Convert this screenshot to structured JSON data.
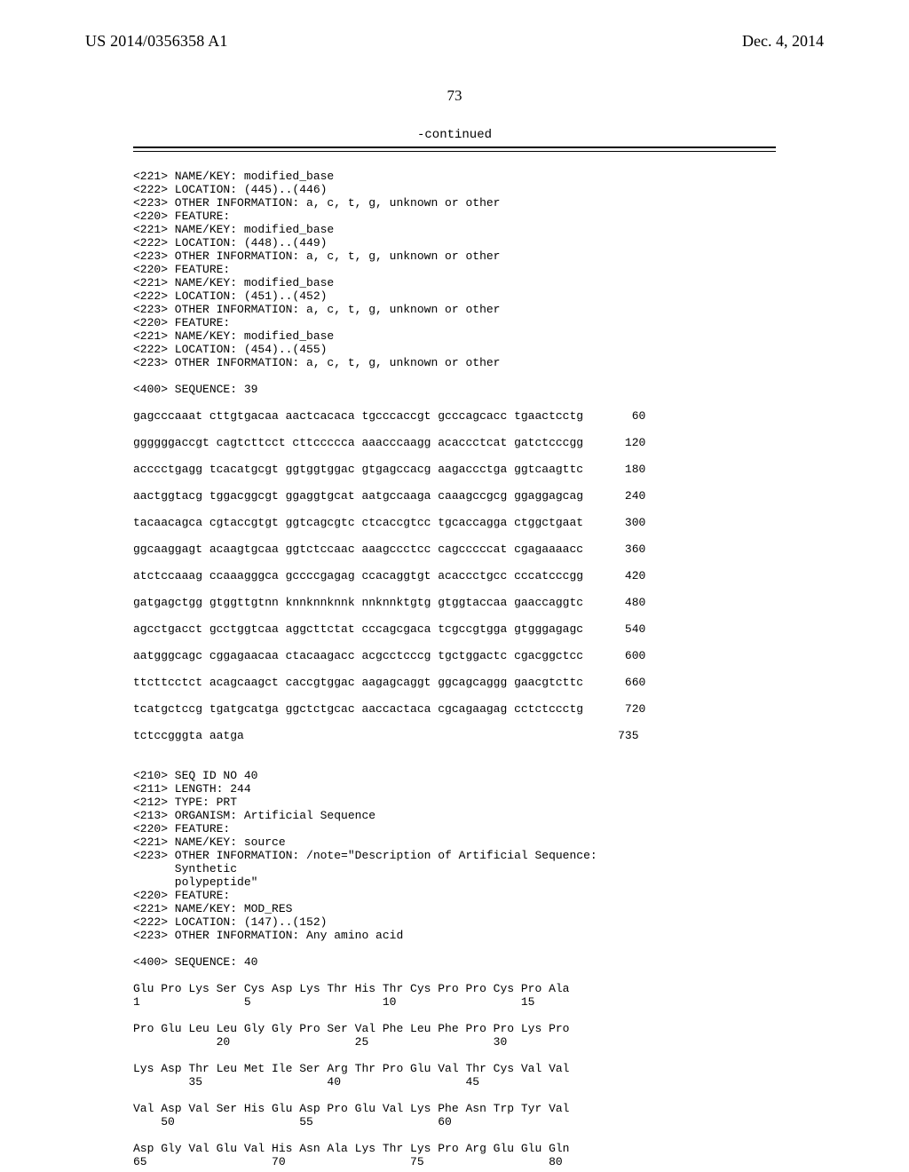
{
  "header": {
    "pub_number": "US 2014/0356358 A1",
    "pub_date": "Dec. 4, 2014",
    "page_number": "73",
    "continued": "-continued"
  },
  "body_text": "<221> NAME/KEY: modified_base\n<222> LOCATION: (445)..(446)\n<223> OTHER INFORMATION: a, c, t, g, unknown or other\n<220> FEATURE:\n<221> NAME/KEY: modified_base\n<222> LOCATION: (448)..(449)\n<223> OTHER INFORMATION: a, c, t, g, unknown or other\n<220> FEATURE:\n<221> NAME/KEY: modified_base\n<222> LOCATION: (451)..(452)\n<223> OTHER INFORMATION: a, c, t, g, unknown or other\n<220> FEATURE:\n<221> NAME/KEY: modified_base\n<222> LOCATION: (454)..(455)\n<223> OTHER INFORMATION: a, c, t, g, unknown or other\n\n<400> SEQUENCE: 39\n\ngagcccaaat cttgtgacaa aactcacaca tgcccaccgt gcccagcacc tgaactcctg       60\n\nggggggaccgt cagtcttcct cttccccca aaacccaagg acaccctcat gatctcccgg      120\n\nacccctgagg tcacatgcgt ggtggtggac gtgagccacg aagaccctga ggtcaagttc      180\n\naactggtacg tggacggcgt ggaggtgcat aatgccaaga caaagccgcg ggaggagcag      240\n\ntacaacagca cgtaccgtgt ggtcagcgtc ctcaccgtcc tgcaccagga ctggctgaat      300\n\nggcaaggagt acaagtgcaa ggtctccaac aaagccctcc cagcccccat cgagaaaacc      360\n\natctccaaag ccaaagggca gccccgagag ccacaggtgt acaccctgcc cccatcccgg      420\n\ngatgagctgg gtggttgtnn knnknnknnk nnknnktgtg gtggtaccaa gaaccaggtc      480\n\nagcctgacct gcctggtcaa aggcttctat cccagcgaca tcgccgtgga gtgggagagc      540\n\naatgggcagc cggagaacaa ctacaagacc acgcctcccg tgctggactc cgacggctcc      600\n\nttcttcctct acagcaagct caccgtggac aagagcaggt ggcagcaggg gaacgtcttc      660\n\ntcatgctccg tgatgcatga ggctctgcac aaccactaca cgcagaagag cctctccctg      720\n\ntctccgggta aatga                                                      735\n\n\n<210> SEQ ID NO 40\n<211> LENGTH: 244\n<212> TYPE: PRT\n<213> ORGANISM: Artificial Sequence\n<220> FEATURE:\n<221> NAME/KEY: source\n<223> OTHER INFORMATION: /note=\"Description of Artificial Sequence:\n      Synthetic\n      polypeptide\"\n<220> FEATURE:\n<221> NAME/KEY: MOD_RES\n<222> LOCATION: (147)..(152)\n<223> OTHER INFORMATION: Any amino acid\n\n<400> SEQUENCE: 40\n\nGlu Pro Lys Ser Cys Asp Lys Thr His Thr Cys Pro Pro Cys Pro Ala\n1               5                   10                  15\n\nPro Glu Leu Leu Gly Gly Pro Ser Val Phe Leu Phe Pro Pro Lys Pro\n            20                  25                  30\n\nLys Asp Thr Leu Met Ile Ser Arg Thr Pro Glu Val Thr Cys Val Val\n        35                  40                  45\n\nVal Asp Val Ser His Glu Asp Pro Glu Val Lys Phe Asn Trp Tyr Val\n    50                  55                  60\n\nAsp Gly Val Glu Val His Asn Ala Lys Thr Lys Pro Arg Glu Glu Gln\n65                  70                  75                  80"
}
